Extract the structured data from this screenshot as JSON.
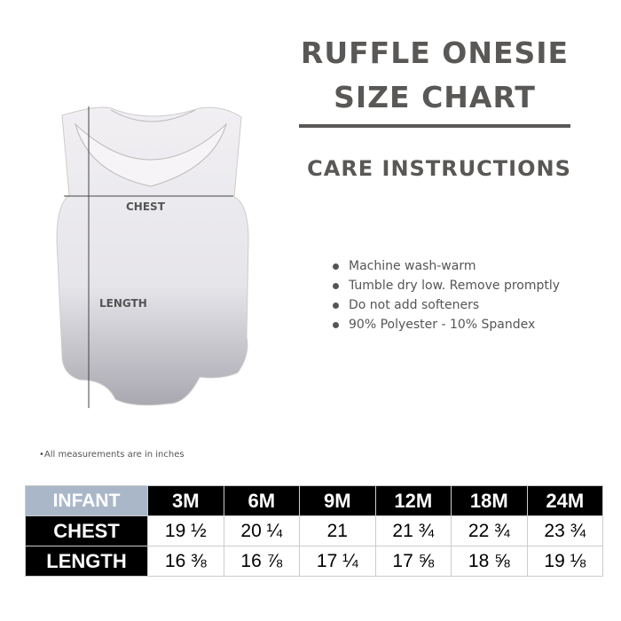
{
  "title_line1": "RUFFLE ONESIE",
  "title_line2": "SIZE CHART",
  "care_heading": "CARE INSTRUCTIONS",
  "care_items": [
    "Machine wash-warm",
    "Tumble dry low. Remove promptly",
    "Do not add softeners",
    "90% Polyester - 10% Spandex"
  ],
  "diagram_labels": {
    "chest": "CHEST",
    "length": "LENGTH"
  },
  "note": "•All measurements are in inches",
  "table": {
    "header_label": "INFANT",
    "sizes": [
      "3M",
      "6M",
      "9M",
      "12M",
      "18M",
      "24M"
    ],
    "rows": [
      {
        "label": "CHEST",
        "values": [
          "19 ½",
          "20 ¼",
          "21",
          "21 ¾",
          "22 ¾",
          "23 ¾"
        ]
      },
      {
        "label": "LENGTH",
        "values": [
          "16 ⅜",
          "16 ⅞",
          "17 ¼",
          "17 ⅝",
          "18 ⅝",
          "19 ⅛"
        ]
      }
    ]
  },
  "colors": {
    "title": "#5a5856",
    "infant_header": "#a9b7c9",
    "table_header": "#000000"
  }
}
